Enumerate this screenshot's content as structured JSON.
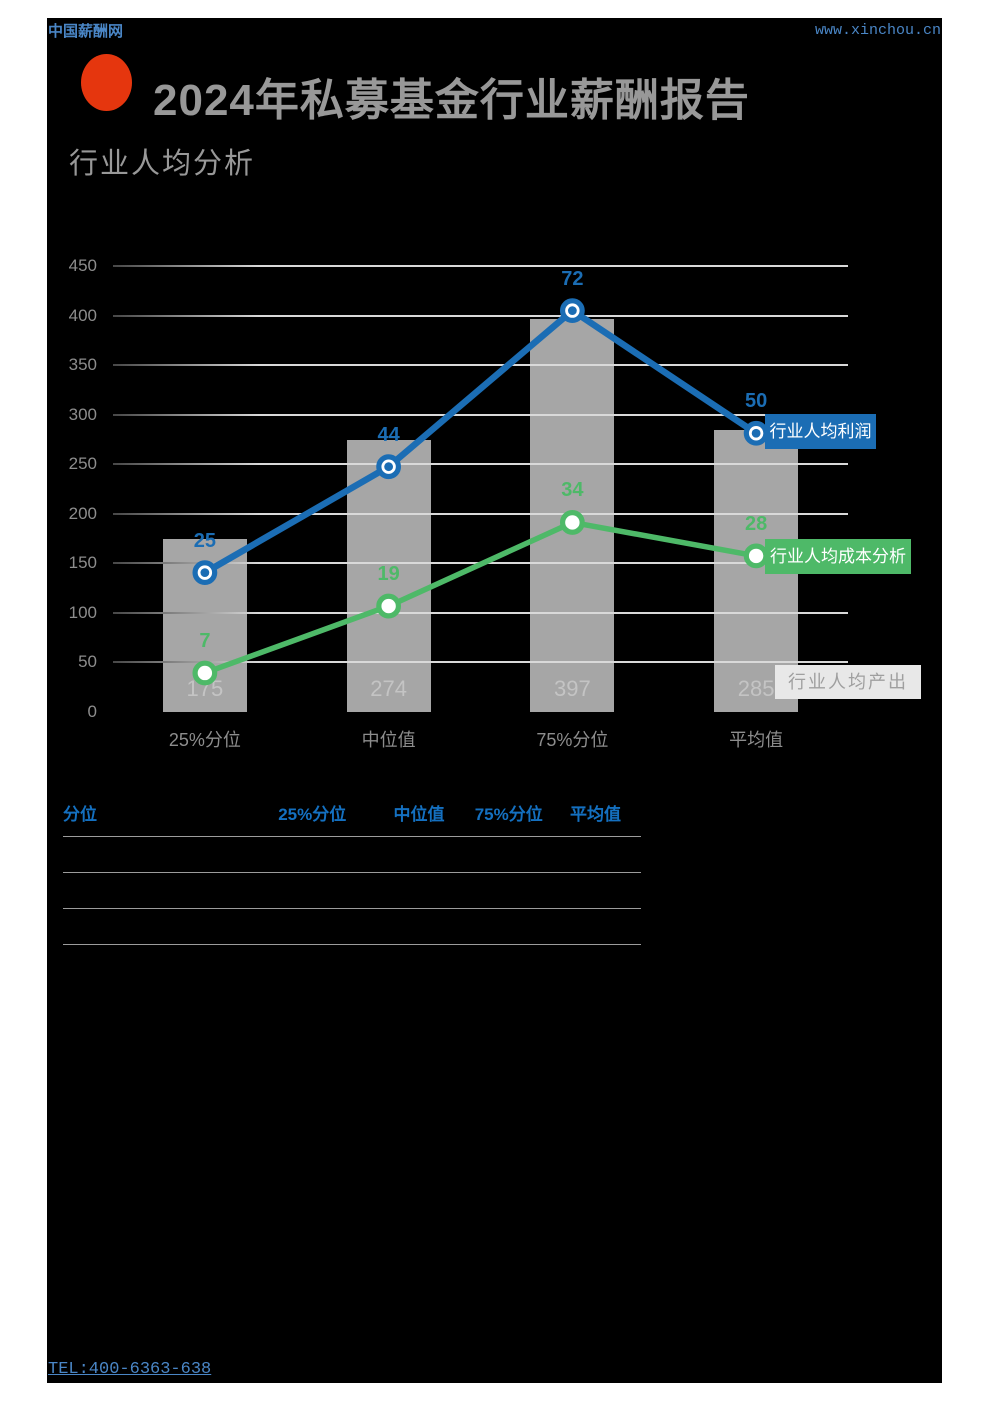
{
  "page": {
    "site_name": "中国薪酬网",
    "site_url": "www.xinchou.cn",
    "tel": "TEL:400-6363-638"
  },
  "report": {
    "title": "2024年私募基金行业薪酬报告",
    "section_title": "行业人均分析"
  },
  "chart_data": {
    "type": "bar+line combo",
    "categories": [
      "25%分位",
      "中位值",
      "75%分位",
      "平均值"
    ],
    "series": [
      {
        "name": "行业人均产出",
        "type": "bar",
        "axis": "left",
        "color": "#a6a6a6",
        "values": [
          175,
          274,
          397,
          285
        ]
      },
      {
        "name": "行业人均利润",
        "type": "line",
        "axis": "right",
        "color": "#1b6db4",
        "marker_dot": true,
        "values": [
          25,
          44,
          72,
          50
        ]
      },
      {
        "name": "行业人均成本分析",
        "type": "line",
        "axis": "right",
        "color": "#4eb968",
        "marker_dot": false,
        "values": [
          7,
          19,
          34,
          28
        ]
      }
    ],
    "left_axis": {
      "min": 0,
      "max": 450,
      "step": 50
    },
    "right_axis": {
      "min": 0,
      "max": 80,
      "visible": false
    },
    "grid": true,
    "legend": [
      {
        "label": "行业人均利润",
        "bg": "#1b6db4",
        "text_color": "#ffffff"
      },
      {
        "label": "行业人均成本分析",
        "bg": "#4eb968",
        "text_color": "#ffffff"
      },
      {
        "label": "行业人均产出",
        "bg": "#e8e8e8",
        "text_color": "#9f9f9f"
      }
    ],
    "colors": {
      "bar": "#a6a6a6",
      "bar_value_label": "#c4c4c4",
      "axis_text": "#8d8d8d",
      "grid": "#d9d9d9"
    }
  },
  "table": {
    "headers": [
      "分位",
      "25%分位",
      "中位值",
      "75%分位",
      "平均值"
    ],
    "rows": [
      [
        "",
        "",
        "",
        "",
        ""
      ],
      [
        "",
        "",
        "",
        "",
        ""
      ],
      [
        "",
        "",
        "",
        "",
        ""
      ]
    ]
  }
}
